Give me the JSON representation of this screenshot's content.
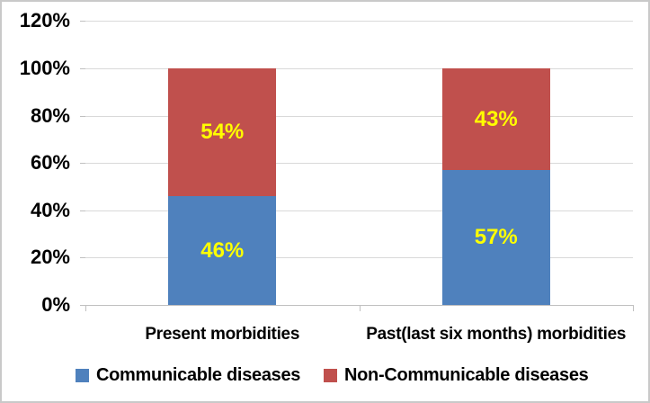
{
  "chart_data": {
    "type": "bar",
    "stacked": true,
    "orientation": "vertical",
    "title": "",
    "xlabel": "",
    "ylabel": "",
    "categories": [
      "Present morbidities",
      "Past(last six months) morbidities"
    ],
    "series": [
      {
        "name": "Communicable diseases",
        "color": "#4F81BD",
        "values": [
          46,
          57
        ],
        "data_labels": [
          "46%",
          "57%"
        ]
      },
      {
        "name": "Non-Communicable diseases",
        "color": "#C0504D",
        "values": [
          54,
          43
        ],
        "data_labels": [
          "54%",
          "43%"
        ]
      }
    ],
    "ylim": [
      0,
      120
    ],
    "ytick_step": 20,
    "ytick_labels": [
      "0%",
      "20%",
      "40%",
      "60%",
      "80%",
      "100%",
      "120%"
    ],
    "grid": true,
    "legend_position": "bottom",
    "data_label_color": "#FFFF00"
  },
  "style_colors": {
    "gridline": "#D9D9D9",
    "axis_line": "#C0C0C0",
    "background": "#FFFFFF",
    "border": "#C9C9C9",
    "tick_text": "#000000"
  }
}
